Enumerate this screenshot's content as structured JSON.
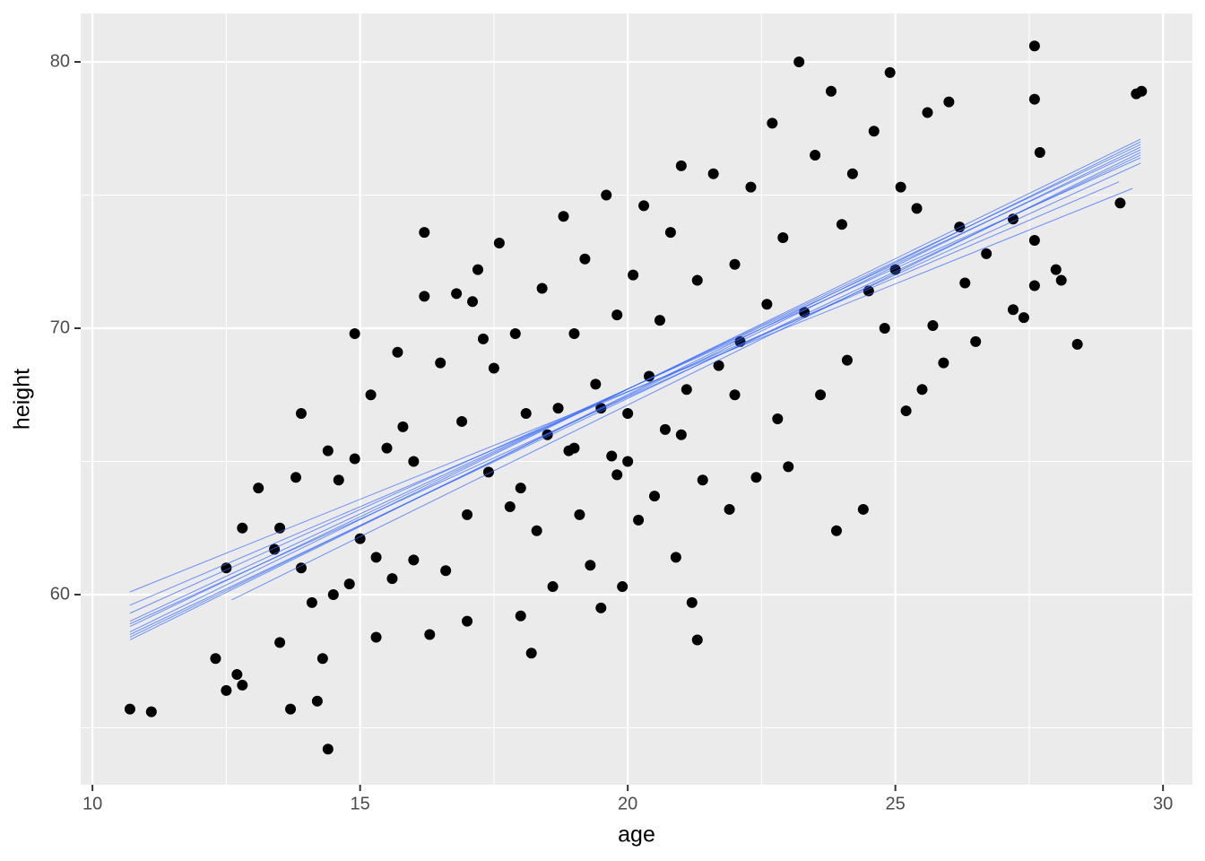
{
  "chart_data": {
    "type": "scatter",
    "x_label": "age",
    "y_label": "height",
    "xlim": [
      9.78,
      30.55
    ],
    "ylim": [
      52.86,
      81.82
    ],
    "xticks": [
      10,
      15,
      20,
      25,
      30
    ],
    "yticks": [
      60,
      70,
      80
    ],
    "grid": true,
    "color": "#000000",
    "x": [
      10.7,
      11.1,
      12.3,
      12.5,
      12.7,
      12.8,
      12.5,
      12.8,
      13.1,
      13.4,
      13.5,
      13.5,
      13.7,
      13.8,
      13.9,
      13.9,
      14.1,
      14.2,
      14.3,
      14.4,
      14.4,
      14.5,
      14.6,
      14.8,
      14.9,
      14.9,
      15.0,
      15.2,
      15.3,
      15.3,
      15.5,
      15.6,
      15.7,
      15.8,
      16.0,
      16.2,
      16.3,
      16.2,
      16.5,
      16.6,
      16.8,
      16.9,
      17.0,
      17.1,
      17.2,
      17.3,
      17.4,
      17.5,
      17.6,
      17.8,
      17.9,
      18.0,
      18.1,
      18.2,
      18.3,
      18.4,
      18.6,
      18.7,
      18.8,
      18.9,
      19.0,
      19.1,
      19.2,
      19.3,
      19.4,
      19.5,
      19.6,
      19.7,
      19.8,
      19.9,
      20.0,
      20.1,
      20.2,
      20.3,
      20.4,
      20.5,
      20.6,
      20.7,
      20.8,
      20.9,
      21.0,
      21.1,
      21.2,
      21.3,
      21.3,
      21.4,
      21.6,
      21.7,
      21.9,
      22.0,
      22.1,
      22.3,
      22.4,
      22.6,
      22.7,
      22.8,
      22.9,
      23.0,
      23.2,
      23.3,
      23.5,
      23.6,
      23.8,
      23.9,
      24.0,
      24.1,
      24.2,
      24.4,
      24.5,
      24.6,
      24.8,
      24.9,
      25.0,
      25.1,
      25.2,
      25.4,
      25.5,
      25.6,
      25.7,
      25.9,
      26.0,
      26.2,
      26.3,
      26.5,
      26.7,
      27.2,
      27.2,
      27.4,
      27.6,
      27.6,
      27.6,
      27.6,
      27.7,
      28.0,
      28.1,
      28.4,
      29.2,
      29.5,
      29.6,
      18.5,
      19.0,
      19.5,
      20.0,
      18.0,
      21.0,
      22.0,
      17.0,
      16.0,
      19.8
    ],
    "y": [
      55.7,
      55.6,
      57.6,
      56.4,
      57.0,
      56.6,
      61.0,
      62.5,
      64.0,
      61.7,
      62.5,
      58.2,
      55.7,
      64.4,
      66.8,
      61.0,
      59.7,
      56.0,
      57.6,
      54.2,
      65.4,
      60.0,
      64.3,
      60.4,
      65.1,
      69.8,
      62.1,
      67.5,
      61.4,
      58.4,
      65.5,
      60.6,
      69.1,
      66.3,
      61.3,
      73.6,
      58.5,
      71.2,
      68.7,
      60.9,
      71.3,
      66.5,
      59.0,
      71.0,
      72.2,
      69.6,
      64.6,
      68.5,
      73.2,
      63.3,
      69.8,
      59.2,
      66.8,
      57.8,
      62.4,
      71.5,
      60.3,
      67.0,
      74.2,
      65.4,
      69.8,
      63.0,
      72.6,
      61.1,
      67.9,
      59.5,
      75.0,
      65.2,
      70.5,
      60.3,
      66.8,
      72.0,
      62.8,
      74.6,
      68.2,
      63.7,
      70.3,
      66.2,
      73.6,
      61.4,
      76.1,
      67.7,
      59.7,
      58.3,
      71.8,
      64.3,
      75.8,
      68.6,
      63.2,
      72.4,
      69.5,
      75.3,
      64.4,
      70.9,
      77.7,
      66.6,
      73.4,
      64.8,
      80.0,
      70.6,
      76.5,
      67.5,
      78.9,
      62.4,
      73.9,
      68.8,
      75.8,
      63.2,
      71.4,
      77.4,
      70.0,
      79.6,
      72.2,
      75.3,
      66.9,
      74.5,
      67.7,
      78.1,
      70.1,
      68.7,
      78.5,
      73.8,
      71.7,
      69.5,
      72.8,
      74.1,
      70.7,
      70.4,
      80.6,
      78.6,
      73.3,
      71.6,
      76.6,
      72.2,
      71.8,
      69.4,
      74.7,
      78.8,
      78.9,
      66.0,
      65.5,
      67.0,
      65.0,
      64.0,
      66.0,
      67.5,
      63.0,
      65.0,
      64.5
    ],
    "fit_lines": {
      "color": "#3366ff",
      "segments": [
        {
          "x": [
            10.7,
            29.43
          ],
          "y": [
            60.1,
            75.25
          ]
        },
        {
          "x": [
            10.7,
            29.18
          ],
          "y": [
            59.6,
            75.5
          ]
        },
        {
          "x": [
            10.7,
            29.58
          ],
          "y": [
            59.3,
            76.4
          ]
        },
        {
          "x": [
            10.7,
            29.58
          ],
          "y": [
            59.0,
            76.7
          ]
        },
        {
          "x": [
            10.7,
            29.58
          ],
          "y": [
            58.8,
            76.9
          ]
        },
        {
          "x": [
            10.7,
            29.58
          ],
          "y": [
            58.6,
            77.1
          ]
        },
        {
          "x": [
            10.7,
            29.58
          ],
          "y": [
            58.4,
            76.8
          ]
        },
        {
          "x": [
            10.7,
            29.58
          ],
          "y": [
            58.3,
            77.0
          ]
        },
        {
          "x": [
            10.7,
            29.58
          ],
          "y": [
            58.9,
            76.2
          ]
        },
        {
          "x": [
            10.7,
            29.58
          ],
          "y": [
            58.5,
            76.5
          ]
        },
        {
          "x": [
            12.6,
            29.58
          ],
          "y": [
            59.8,
            76.6
          ]
        }
      ]
    }
  }
}
